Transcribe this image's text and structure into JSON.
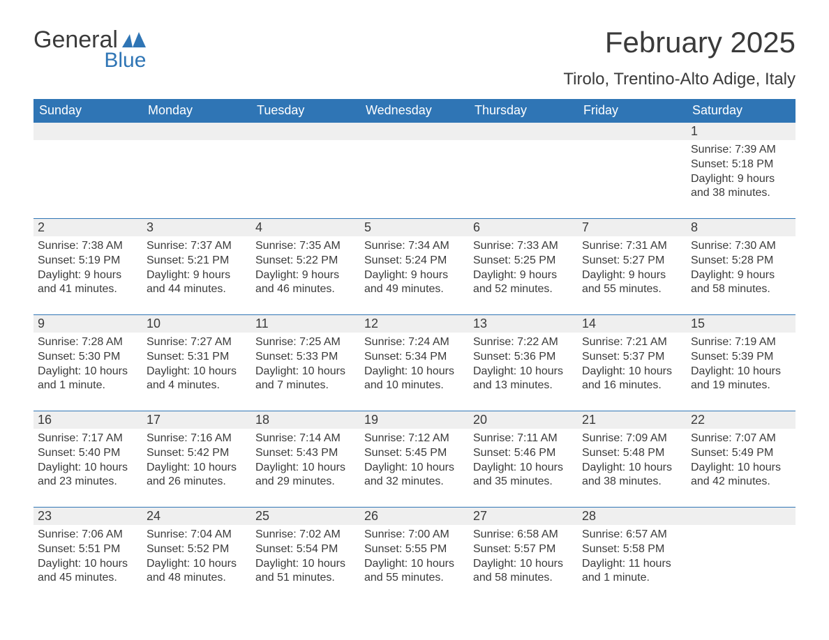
{
  "logo": {
    "text_general": "General",
    "text_blue": "Blue",
    "flag_color": "#2f75b5",
    "general_color": "#3a3a3a",
    "blue_color": "#2f75b5"
  },
  "title": "February 2025",
  "location": "Tirolo, Trentino-Alto Adige, Italy",
  "colors": {
    "header_bg": "#2f75b5",
    "header_text": "#ffffff",
    "daynum_bg": "#efefef",
    "daynum_border": "#2f75b5",
    "body_text": "#3a3a3a",
    "page_bg": "#ffffff"
  },
  "typography": {
    "title_fontsize": 42,
    "location_fontsize": 24,
    "header_fontsize": 18,
    "daynum_fontsize": 18,
    "body_fontsize": 16,
    "logo_fontsize": 34
  },
  "weekdays": [
    "Sunday",
    "Monday",
    "Tuesday",
    "Wednesday",
    "Thursday",
    "Friday",
    "Saturday"
  ],
  "weeks": [
    [
      null,
      null,
      null,
      null,
      null,
      null,
      {
        "n": "1",
        "sunrise": "Sunrise: 7:39 AM",
        "sunset": "Sunset: 5:18 PM",
        "day1": "Daylight: 9 hours",
        "day2": "and 38 minutes."
      }
    ],
    [
      {
        "n": "2",
        "sunrise": "Sunrise: 7:38 AM",
        "sunset": "Sunset: 5:19 PM",
        "day1": "Daylight: 9 hours",
        "day2": "and 41 minutes."
      },
      {
        "n": "3",
        "sunrise": "Sunrise: 7:37 AM",
        "sunset": "Sunset: 5:21 PM",
        "day1": "Daylight: 9 hours",
        "day2": "and 44 minutes."
      },
      {
        "n": "4",
        "sunrise": "Sunrise: 7:35 AM",
        "sunset": "Sunset: 5:22 PM",
        "day1": "Daylight: 9 hours",
        "day2": "and 46 minutes."
      },
      {
        "n": "5",
        "sunrise": "Sunrise: 7:34 AM",
        "sunset": "Sunset: 5:24 PM",
        "day1": "Daylight: 9 hours",
        "day2": "and 49 minutes."
      },
      {
        "n": "6",
        "sunrise": "Sunrise: 7:33 AM",
        "sunset": "Sunset: 5:25 PM",
        "day1": "Daylight: 9 hours",
        "day2": "and 52 minutes."
      },
      {
        "n": "7",
        "sunrise": "Sunrise: 7:31 AM",
        "sunset": "Sunset: 5:27 PM",
        "day1": "Daylight: 9 hours",
        "day2": "and 55 minutes."
      },
      {
        "n": "8",
        "sunrise": "Sunrise: 7:30 AM",
        "sunset": "Sunset: 5:28 PM",
        "day1": "Daylight: 9 hours",
        "day2": "and 58 minutes."
      }
    ],
    [
      {
        "n": "9",
        "sunrise": "Sunrise: 7:28 AM",
        "sunset": "Sunset: 5:30 PM",
        "day1": "Daylight: 10 hours",
        "day2": "and 1 minute."
      },
      {
        "n": "10",
        "sunrise": "Sunrise: 7:27 AM",
        "sunset": "Sunset: 5:31 PM",
        "day1": "Daylight: 10 hours",
        "day2": "and 4 minutes."
      },
      {
        "n": "11",
        "sunrise": "Sunrise: 7:25 AM",
        "sunset": "Sunset: 5:33 PM",
        "day1": "Daylight: 10 hours",
        "day2": "and 7 minutes."
      },
      {
        "n": "12",
        "sunrise": "Sunrise: 7:24 AM",
        "sunset": "Sunset: 5:34 PM",
        "day1": "Daylight: 10 hours",
        "day2": "and 10 minutes."
      },
      {
        "n": "13",
        "sunrise": "Sunrise: 7:22 AM",
        "sunset": "Sunset: 5:36 PM",
        "day1": "Daylight: 10 hours",
        "day2": "and 13 minutes."
      },
      {
        "n": "14",
        "sunrise": "Sunrise: 7:21 AM",
        "sunset": "Sunset: 5:37 PM",
        "day1": "Daylight: 10 hours",
        "day2": "and 16 minutes."
      },
      {
        "n": "15",
        "sunrise": "Sunrise: 7:19 AM",
        "sunset": "Sunset: 5:39 PM",
        "day1": "Daylight: 10 hours",
        "day2": "and 19 minutes."
      }
    ],
    [
      {
        "n": "16",
        "sunrise": "Sunrise: 7:17 AM",
        "sunset": "Sunset: 5:40 PM",
        "day1": "Daylight: 10 hours",
        "day2": "and 23 minutes."
      },
      {
        "n": "17",
        "sunrise": "Sunrise: 7:16 AM",
        "sunset": "Sunset: 5:42 PM",
        "day1": "Daylight: 10 hours",
        "day2": "and 26 minutes."
      },
      {
        "n": "18",
        "sunrise": "Sunrise: 7:14 AM",
        "sunset": "Sunset: 5:43 PM",
        "day1": "Daylight: 10 hours",
        "day2": "and 29 minutes."
      },
      {
        "n": "19",
        "sunrise": "Sunrise: 7:12 AM",
        "sunset": "Sunset: 5:45 PM",
        "day1": "Daylight: 10 hours",
        "day2": "and 32 minutes."
      },
      {
        "n": "20",
        "sunrise": "Sunrise: 7:11 AM",
        "sunset": "Sunset: 5:46 PM",
        "day1": "Daylight: 10 hours",
        "day2": "and 35 minutes."
      },
      {
        "n": "21",
        "sunrise": "Sunrise: 7:09 AM",
        "sunset": "Sunset: 5:48 PM",
        "day1": "Daylight: 10 hours",
        "day2": "and 38 minutes."
      },
      {
        "n": "22",
        "sunrise": "Sunrise: 7:07 AM",
        "sunset": "Sunset: 5:49 PM",
        "day1": "Daylight: 10 hours",
        "day2": "and 42 minutes."
      }
    ],
    [
      {
        "n": "23",
        "sunrise": "Sunrise: 7:06 AM",
        "sunset": "Sunset: 5:51 PM",
        "day1": "Daylight: 10 hours",
        "day2": "and 45 minutes."
      },
      {
        "n": "24",
        "sunrise": "Sunrise: 7:04 AM",
        "sunset": "Sunset: 5:52 PM",
        "day1": "Daylight: 10 hours",
        "day2": "and 48 minutes."
      },
      {
        "n": "25",
        "sunrise": "Sunrise: 7:02 AM",
        "sunset": "Sunset: 5:54 PM",
        "day1": "Daylight: 10 hours",
        "day2": "and 51 minutes."
      },
      {
        "n": "26",
        "sunrise": "Sunrise: 7:00 AM",
        "sunset": "Sunset: 5:55 PM",
        "day1": "Daylight: 10 hours",
        "day2": "and 55 minutes."
      },
      {
        "n": "27",
        "sunrise": "Sunrise: 6:58 AM",
        "sunset": "Sunset: 5:57 PM",
        "day1": "Daylight: 10 hours",
        "day2": "and 58 minutes."
      },
      {
        "n": "28",
        "sunrise": "Sunrise: 6:57 AM",
        "sunset": "Sunset: 5:58 PM",
        "day1": "Daylight: 11 hours",
        "day2": "and 1 minute."
      },
      null
    ]
  ]
}
